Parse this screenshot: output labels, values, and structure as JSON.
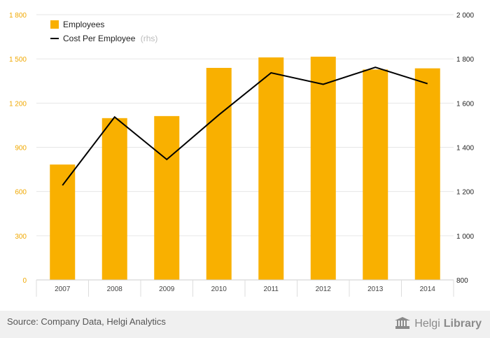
{
  "chart_data": {
    "type": "bar+line",
    "categories": [
      "2007",
      "2008",
      "2009",
      "2010",
      "2011",
      "2012",
      "2013",
      "2014"
    ],
    "series": [
      {
        "name": "Employees",
        "type": "bar",
        "axis": "left",
        "color": "#f9b000",
        "values": [
          783,
          1098,
          1112,
          1439,
          1510,
          1515,
          1428,
          1436
        ]
      },
      {
        "name": "Cost Per Employee",
        "name_suffix": "(rhs)",
        "type": "line",
        "axis": "right",
        "color": "#000000",
        "values": [
          1228,
          1537,
          1345,
          1547,
          1737,
          1685,
          1762,
          1688
        ]
      }
    ],
    "y_left": {
      "min": 0,
      "max": 1800,
      "ticks": [
        0,
        300,
        600,
        900,
        1200,
        1500,
        1800
      ],
      "tick_labels": [
        "0",
        "300",
        "600",
        "900",
        "1 200",
        "1 500",
        "1 800"
      ],
      "color": "#f0a800"
    },
    "y_right": {
      "min": 800,
      "max": 2000,
      "ticks": [
        800,
        1000,
        1200,
        1400,
        1600,
        1800,
        2000
      ],
      "tick_labels": [
        "800",
        "1 000",
        "1 200",
        "1 400",
        "1 600",
        "1 800",
        "2 000"
      ],
      "color": "#222222"
    },
    "grid": true,
    "legend": "top-left"
  },
  "footer": {
    "source": "Source: Company Data, Helgi Analytics",
    "logo_light": "Helgi",
    "logo_bold": "Library"
  }
}
